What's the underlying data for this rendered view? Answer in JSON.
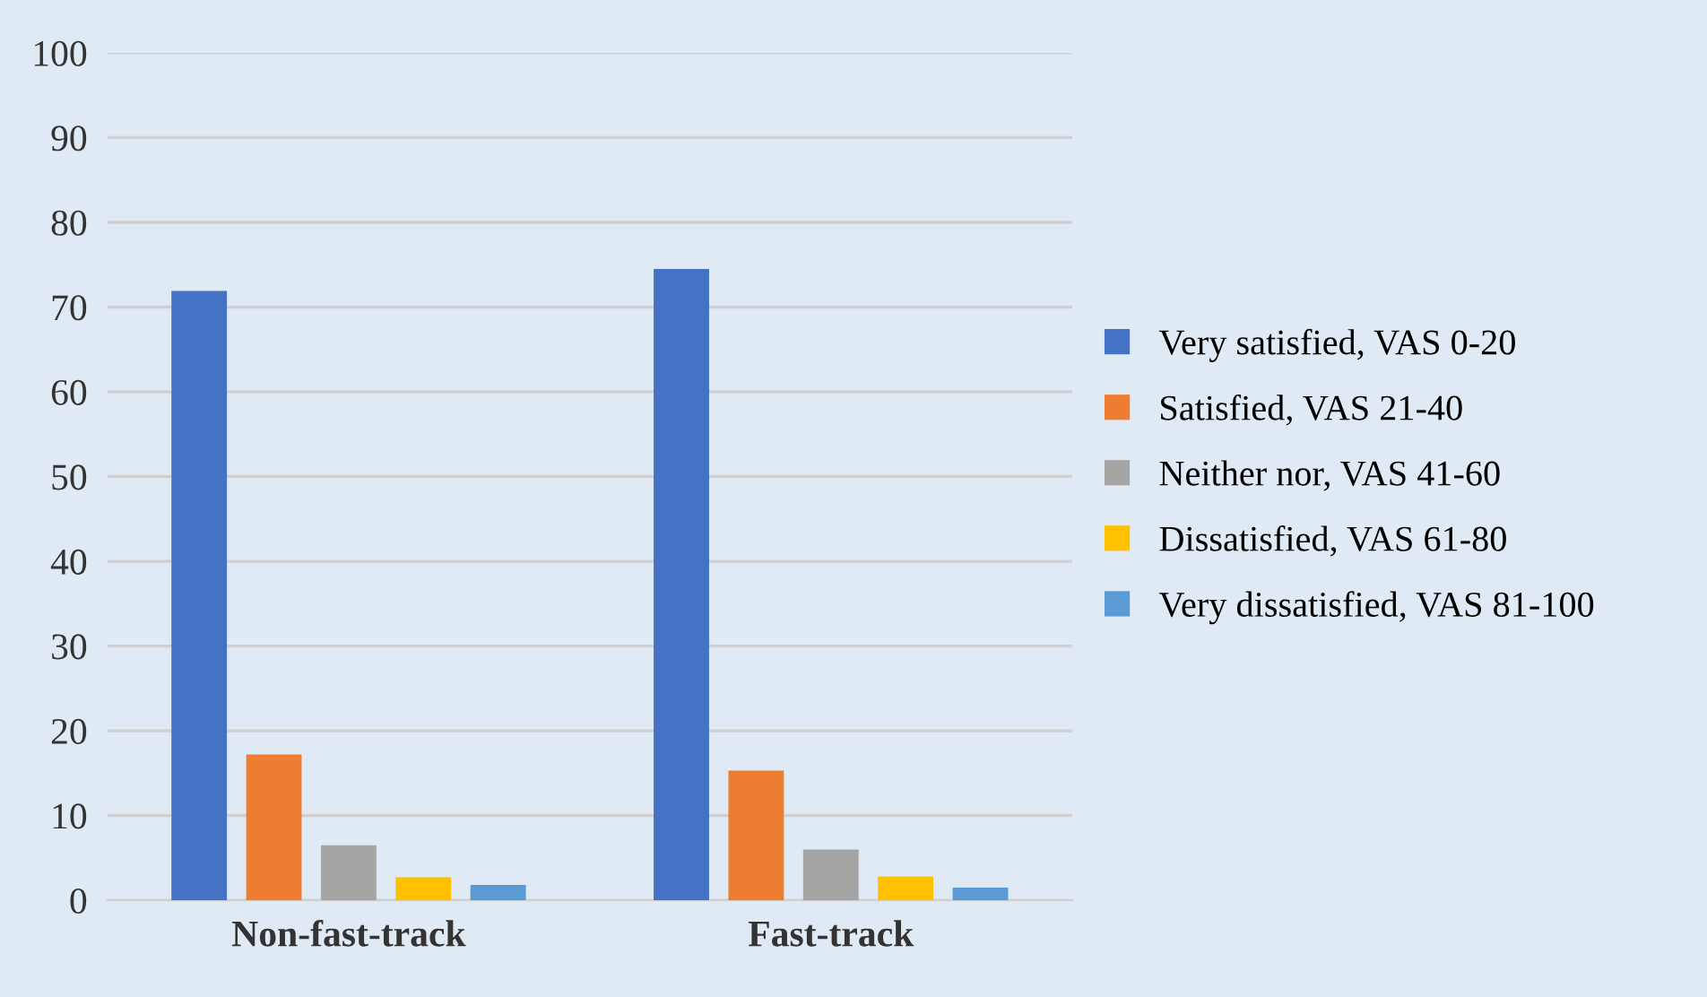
{
  "chart_data": {
    "type": "bar",
    "categories": [
      "Non-fast-track",
      "Fast-track"
    ],
    "series": [
      {
        "name": "Very satisfied, VAS 0-20",
        "color": "#4472c4",
        "values": [
          71.9,
          74.5
        ]
      },
      {
        "name": "Satisfied, VAS 21-40",
        "color": "#ed7d31",
        "values": [
          17.2,
          15.3
        ]
      },
      {
        "name": "Neither nor, VAS 41-60",
        "color": "#a5a5a5",
        "values": [
          6.5,
          6.0
        ]
      },
      {
        "name": "Dissatisfied, VAS 61-80",
        "color": "#ffc000",
        "values": [
          2.7,
          2.8
        ]
      },
      {
        "name": "Very dissatisfied, VAS 81-100",
        "color": "#5b9bd5",
        "values": [
          1.8,
          1.5
        ]
      }
    ],
    "ylim": [
      0,
      100
    ],
    "yticks": [
      0,
      10,
      20,
      30,
      40,
      50,
      60,
      70,
      80,
      90,
      100
    ],
    "grid": "y",
    "legend": "right"
  }
}
